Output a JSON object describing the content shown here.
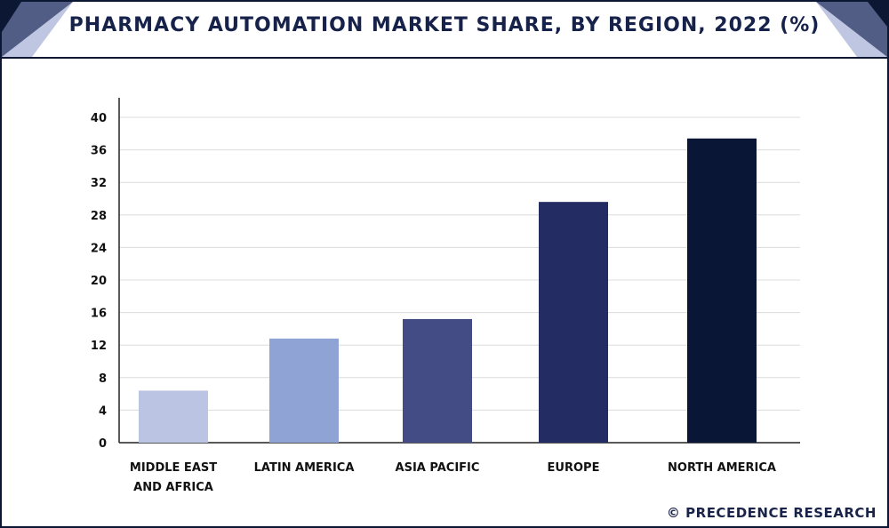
{
  "header": {
    "title": "PHARMACY AUTOMATION MARKET SHARE, BY REGION, 2022 (%)"
  },
  "watermark": "© PRECEDENCE RESEARCH",
  "colors": {
    "frame": "#0c1733",
    "title": "#16224a"
  },
  "chart_data": {
    "type": "bar",
    "title": "PHARMACY AUTOMATION MARKET SHARE, BY REGION, 2022 (%)",
    "xlabel": "",
    "ylabel": "",
    "ylim": [
      0,
      40
    ],
    "yticks": [
      0,
      4,
      8,
      12,
      16,
      20,
      24,
      28,
      32,
      36,
      40
    ],
    "grid": true,
    "categories": [
      [
        "MIDDLE EAST",
        "AND AFRICA"
      ],
      [
        "LATIN AMERICA"
      ],
      [
        "ASIA PACIFIC"
      ],
      [
        "EUROPE"
      ],
      [
        "NORTH AMERICA"
      ]
    ],
    "values": [
      6.4,
      12.8,
      15.2,
      29.6,
      37.4
    ],
    "bar_colors": [
      "#bcc4e4",
      "#8fa4d4",
      "#444c86",
      "#242c64",
      "#0a1636"
    ]
  }
}
